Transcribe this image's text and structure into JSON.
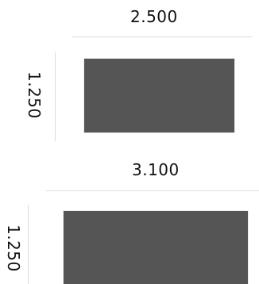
{
  "diagram": {
    "shapes": [
      {
        "width_label": "2.500",
        "height_label": "1.250",
        "fill": "#555555",
        "edge_color": "#ececec"
      },
      {
        "width_label": "3.100",
        "height_label": "1.250",
        "fill": "#555555",
        "edge_color": "#ececec"
      }
    ],
    "dimension_line_color": "#dcdcdc"
  }
}
